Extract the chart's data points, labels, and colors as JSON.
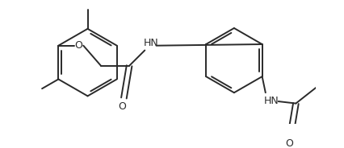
{
  "bg_color": "#ffffff",
  "line_color": "#2a2a2a",
  "line_width": 1.4,
  "font_size": 8.5,
  "figsize": [
    4.26,
    1.84
  ],
  "dpi": 100,
  "xlim": [
    0,
    426
  ],
  "ylim": [
    0,
    184
  ]
}
